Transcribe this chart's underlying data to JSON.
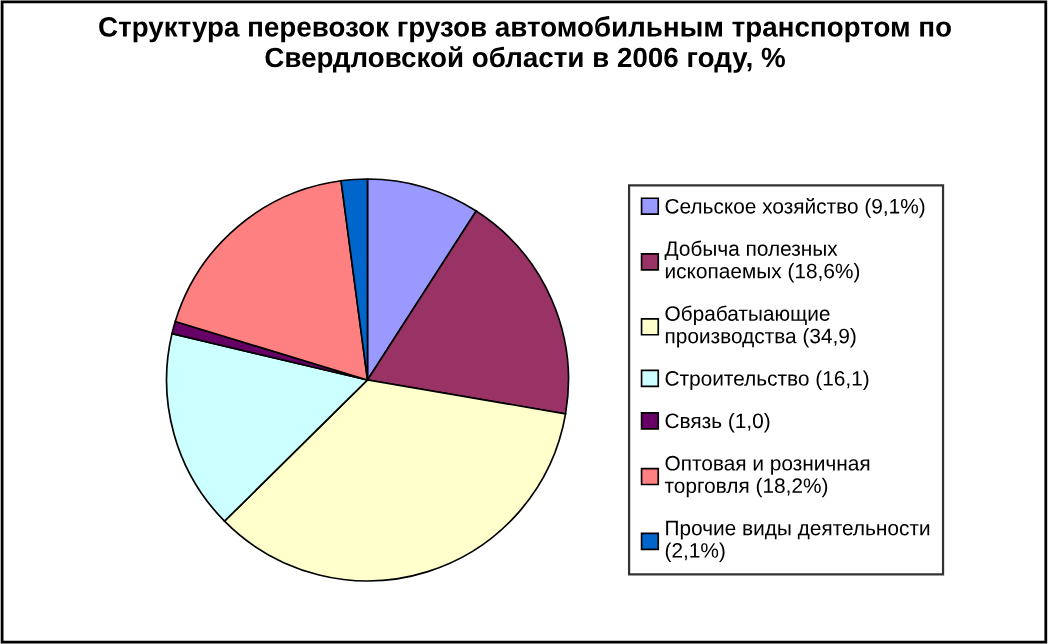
{
  "chart_data": {
    "type": "pie",
    "title": "Структура перевозок грузов автомобильным транспортом по\nСвердловской области в 2006 году, %",
    "categories": [
      "Сельское хозяйство (9,1%)",
      "Добыча полезных\nископаемых (18,6%)",
      "Обрабатыающие\nпроизводства (34,9)",
      "Строительство (16,1)",
      "Связь (1,0)",
      "Оптовая и розничная\nторговля (18,2%)",
      "Прочие виды деятельности\n(2,1%)"
    ],
    "values": [
      9.1,
      18.6,
      34.9,
      16.1,
      1.0,
      18.2,
      2.1
    ],
    "colors": [
      "#9999ff",
      "#993366",
      "#ffffcc",
      "#ccffff",
      "#660066",
      "#ff8080",
      "#0066cc"
    ],
    "legend": "right"
  }
}
